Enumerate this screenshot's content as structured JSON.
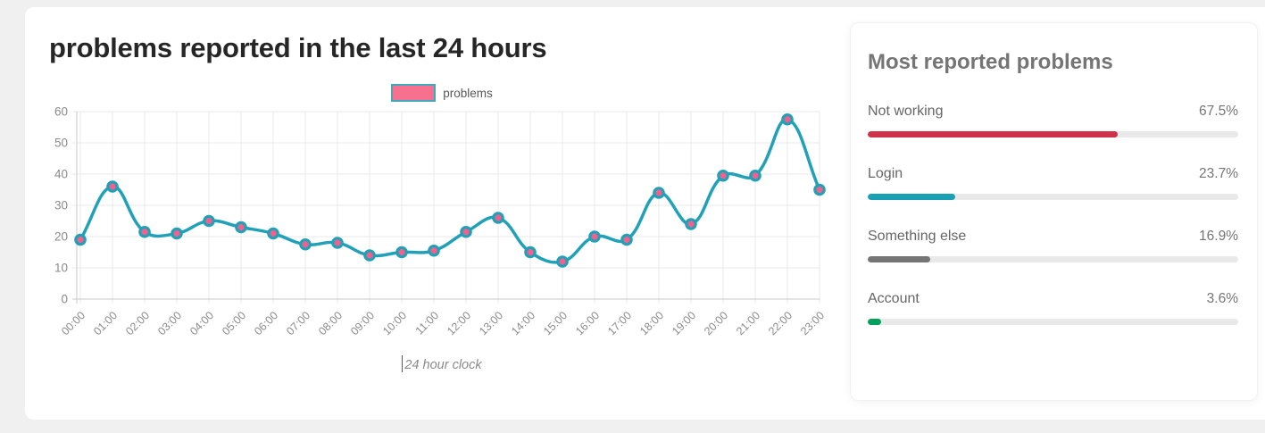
{
  "page": {
    "background": "#f0f0f1"
  },
  "chart_data": {
    "type": "line",
    "title": "problems reported in the last 24 hours",
    "x": [
      "00:00",
      "01:00",
      "02:00",
      "03:00",
      "04:00",
      "05:00",
      "06:00",
      "07:00",
      "08:00",
      "09:00",
      "10:00",
      "11:00",
      "12:00",
      "13:00",
      "14:00",
      "15:00",
      "16:00",
      "17:00",
      "18:00",
      "19:00",
      "20:00",
      "21:00",
      "22:00",
      "23:00"
    ],
    "series": [
      {
        "name": "problems",
        "values": [
          19,
          36,
          21.5,
          21,
          25,
          23,
          21,
          17.5,
          18,
          14,
          15,
          15.5,
          21.5,
          26,
          15,
          12,
          20,
          19,
          34,
          24,
          39.5,
          39.5,
          57.5,
          35
        ]
      }
    ],
    "ylim": [
      0,
      60
    ],
    "yticks": [
      0,
      10,
      20,
      30,
      40,
      50,
      60
    ],
    "xlabel": "24 hour clock",
    "grid": true,
    "legend_position": "top",
    "line_color": "#21a1b7",
    "marker_fill": "#f2618c",
    "marker_border": "#21a1b7",
    "legend_swatch_fill": "#f8708f",
    "legend_swatch_border": "#3fa9bd",
    "grid_color": "#e9e9e9",
    "axis_color": "#c9c9c9",
    "tick_color": "#8b8b8b"
  },
  "side_panel": {
    "title": "Most reported problems",
    "track_color": "#e9e9e9",
    "items": [
      {
        "label": "Not working",
        "value": "67.5%",
        "pct": 67.5,
        "color": "#d03049"
      },
      {
        "label": "Login",
        "value": "23.7%",
        "pct": 23.7,
        "color": "#18a0b5"
      },
      {
        "label": "Something else",
        "value": "16.9%",
        "pct": 16.9,
        "color": "#757575"
      },
      {
        "label": "Account",
        "value": "3.6%",
        "pct": 3.6,
        "color": "#00a15a"
      }
    ]
  }
}
